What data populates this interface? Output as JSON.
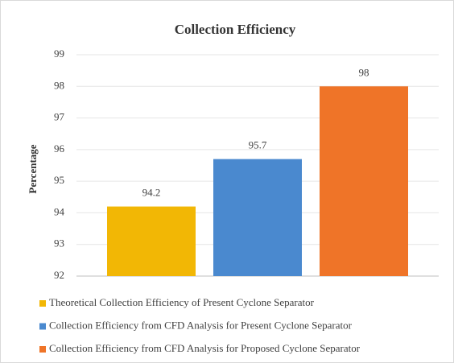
{
  "chart_data": {
    "type": "bar",
    "title": "Collection Efficiency",
    "y_label": "Percentage",
    "categories": [
      null
    ],
    "series": [
      {
        "name": "Theoretical Collection Efficiency of Present Cyclone Separator",
        "color": "#f2b705",
        "values": [
          94.2
        ]
      },
      {
        "name": "Collection Efficiency from CFD Analysis for  Present Cyclone Separator",
        "color": "#4a89cf",
        "values": [
          95.7
        ]
      },
      {
        "name": "Collection Efficiency from CFD Analysis for  Proposed Cyclone Separator",
        "color": "#ef7428",
        "values": [
          98
        ]
      }
    ],
    "ylim": [
      92,
      99
    ],
    "yticks": [
      92,
      93,
      94,
      95,
      96,
      97,
      98,
      99
    ],
    "grid": true,
    "legend": "bottom"
  }
}
